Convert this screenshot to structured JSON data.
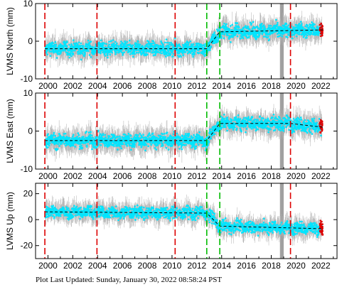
{
  "chart_data": [
    {
      "type": "scatter",
      "ylabel": "LVMS North (mm)",
      "x_ticks": [
        2000,
        2002,
        2004,
        2006,
        2008,
        2010,
        2012,
        2014,
        2016,
        2018,
        2020,
        2022
      ],
      "y_ticks": [
        -10,
        0,
        10
      ],
      "xlim": [
        1999,
        2023.3
      ],
      "ylim": [
        -10,
        10
      ],
      "red_lines": [
        1999.75,
        2003.95,
        2010.25,
        2019.55
      ],
      "green_lines": [
        2012.8,
        2013.85
      ],
      "gray_band": [
        2018.7,
        2019.0
      ],
      "trend": [
        {
          "x": 1999.75,
          "y": -2
        },
        {
          "x": 2012.8,
          "y": -2
        },
        {
          "x": 2013.85,
          "y": 2.5
        },
        {
          "x": 2022.2,
          "y": 3
        }
      ],
      "series": [
        {
          "name": "",
          "x": [
            2000,
            2002,
            2004,
            2006,
            2008,
            2010,
            2012,
            2014,
            2016,
            2018,
            2020,
            2022
          ],
          "y": [
            -2,
            -2,
            -2,
            -2,
            -2,
            -2,
            -2,
            2.5,
            2.5,
            3,
            3,
            3
          ]
        }
      ]
    },
    {
      "type": "scatter",
      "ylabel": "LVMS East (mm)",
      "x_ticks": [
        2000,
        2002,
        2004,
        2006,
        2008,
        2010,
        2012,
        2014,
        2016,
        2018,
        2020,
        2022
      ],
      "y_ticks": [
        -10,
        0,
        10
      ],
      "xlim": [
        1999,
        2023.3
      ],
      "ylim": [
        -10,
        10
      ],
      "red_lines": [
        1999.75,
        2003.95,
        2010.25,
        2019.55
      ],
      "green_lines": [
        2012.8,
        2013.85
      ],
      "gray_band": [
        2018.7,
        2019.0
      ],
      "trend": [
        {
          "x": 1999.75,
          "y": -2.5
        },
        {
          "x": 2012.8,
          "y": -2.5
        },
        {
          "x": 2013.85,
          "y": 2
        },
        {
          "x": 2019.55,
          "y": 2
        },
        {
          "x": 2022.2,
          "y": 1
        }
      ],
      "series": [
        {
          "name": "",
          "x": [
            2000,
            2002,
            2004,
            2006,
            2008,
            2010,
            2012,
            2014,
            2016,
            2018,
            2020,
            2022
          ],
          "y": [
            -2.5,
            -2.5,
            -2.5,
            -2.5,
            -2.5,
            -2.5,
            -2.5,
            2,
            2,
            2,
            1,
            1
          ]
        }
      ]
    },
    {
      "type": "scatter",
      "ylabel": "LVMS Up (mm)",
      "x_ticks": [
        2000,
        2002,
        2004,
        2006,
        2008,
        2010,
        2012,
        2014,
        2016,
        2018,
        2020,
        2022
      ],
      "y_ticks": [
        -20,
        0,
        20
      ],
      "xlim": [
        1999,
        2023.3
      ],
      "ylim": [
        -30,
        28
      ],
      "red_lines": [
        1999.75,
        2003.95,
        2010.25,
        2019.55
      ],
      "green_lines": [
        2012.8,
        2013.85
      ],
      "gray_band": [
        2018.7,
        2019.0
      ],
      "trend": [
        {
          "x": 1999.75,
          "y": 6
        },
        {
          "x": 2012.8,
          "y": 5
        },
        {
          "x": 2013.85,
          "y": -5
        },
        {
          "x": 2022.2,
          "y": -7
        }
      ],
      "series": [
        {
          "name": "",
          "x": [
            2000,
            2002,
            2004,
            2006,
            2008,
            2010,
            2012,
            2014,
            2016,
            2018,
            2020,
            2022
          ],
          "y": [
            6,
            6,
            5,
            5,
            5,
            5,
            5,
            -5,
            -5,
            -6,
            -6,
            -7
          ]
        }
      ]
    }
  ],
  "footer": "Plot Last Updated:   Sunday, January 30, 2022 08:58:24 PST",
  "colors": {
    "data": "#00e5ff",
    "errorbar": "#b0b0b0",
    "red_line": "#dd0000",
    "green_line": "#00bb00",
    "gray_band": "#a0a0a0",
    "trend": "#000000",
    "recent_points": "#dd0000"
  }
}
